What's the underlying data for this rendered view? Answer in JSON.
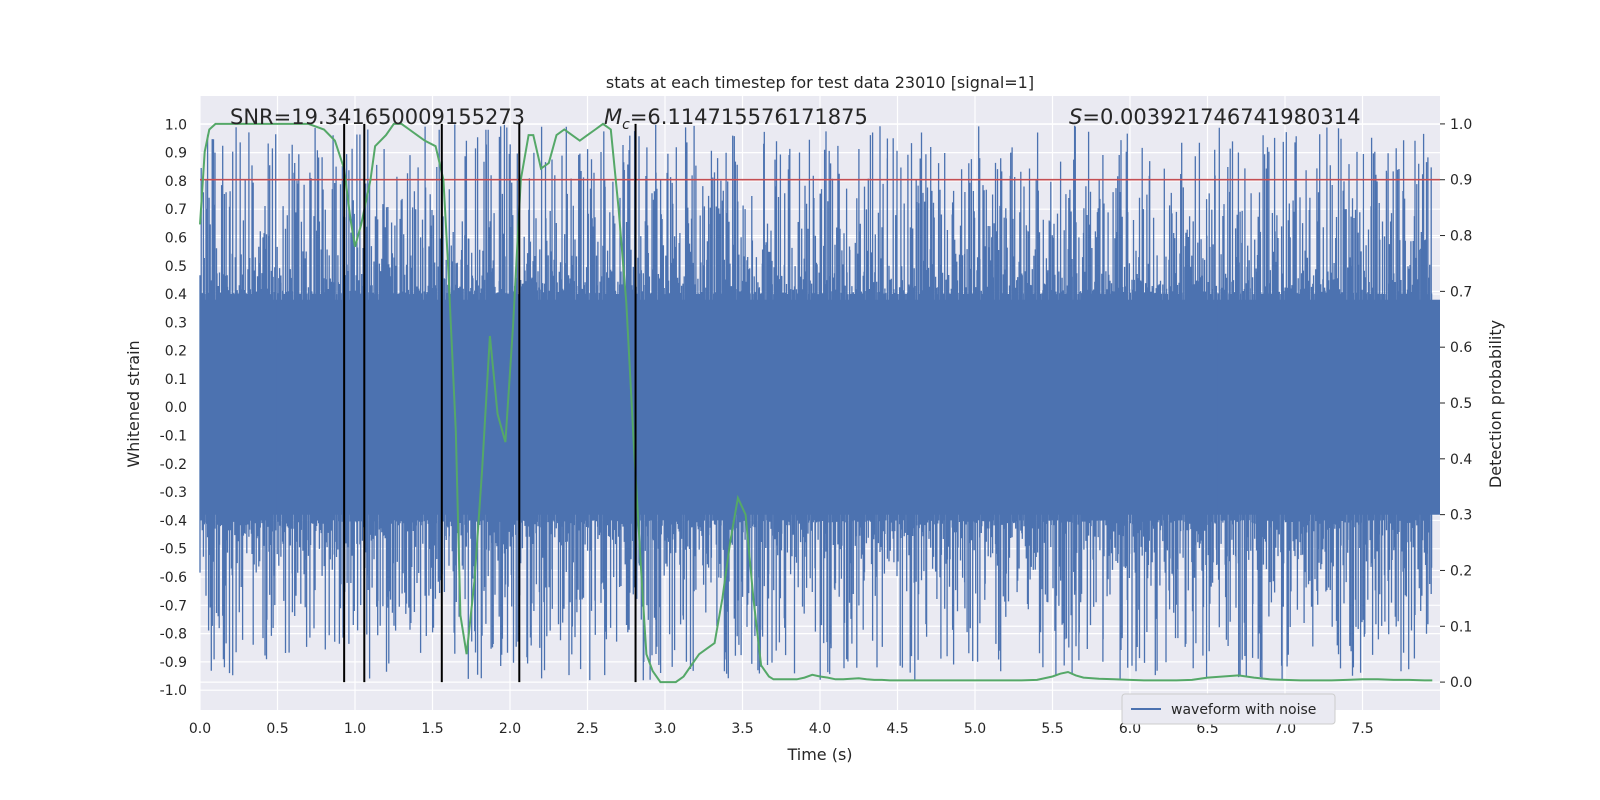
{
  "chart_data": {
    "type": "line",
    "title": "stats at each timestep for test data 23010 [signal=1]",
    "xlabel": "Time (s)",
    "ylabel_left": "Whitened strain",
    "ylabel_right": "Detection probability",
    "xlim": [
      0.0,
      8.0
    ],
    "ylim_left": [
      -1.07,
      1.1
    ],
    "ylim_right": [
      -0.05,
      1.05
    ],
    "x_ticks": [
      "0.0",
      "0.5",
      "1.0",
      "1.5",
      "2.0",
      "2.5",
      "3.0",
      "3.5",
      "4.0",
      "4.5",
      "5.0",
      "5.5",
      "6.0",
      "6.5",
      "7.0",
      "7.5"
    ],
    "y_left_ticks": [
      "1.0",
      "0.9",
      "0.8",
      "0.7",
      "0.6",
      "0.5",
      "0.4",
      "0.3",
      "0.2",
      "0.1",
      "0.0",
      "-0.1",
      "-0.2",
      "-0.3",
      "-0.4",
      "-0.5",
      "-0.6",
      "-0.7",
      "-0.8",
      "-0.9",
      "-1.0"
    ],
    "y_right_ticks": [
      "1.0",
      "0.9",
      "0.8",
      "0.7",
      "0.6",
      "0.5",
      "0.4",
      "0.3",
      "0.2",
      "0.1",
      "0.0"
    ],
    "grid": true,
    "legend_position": "lower-right",
    "annotations": {
      "snr": "SNR=19.341650009155273",
      "chirp_mass_symbol": "M",
      "chirp_mass_sub": "c",
      "chirp_mass_value": "=6.114715576171875",
      "s_symbol": "S",
      "s_value": "=0.003921746741980314"
    },
    "threshold": {
      "axis": "right",
      "value": 0.9,
      "color": "#c44e52"
    },
    "vertical_markers": [
      0.93,
      1.06,
      1.56,
      2.06,
      2.81
    ],
    "series": [
      {
        "name": "waveform with noise",
        "axis": "left",
        "color": "#4c72b0",
        "style": "dense-noise",
        "samples": 8192,
        "core_amplitude": 0.4,
        "spike_max": 1.0,
        "spike_min": -0.97
      },
      {
        "axis": "right",
        "color": "#55a868",
        "x": [
          0.0,
          0.03,
          0.06,
          0.1,
          0.15,
          0.2,
          0.3,
          0.4,
          0.5,
          0.6,
          0.7,
          0.8,
          0.87,
          0.93,
          0.97,
          1.0,
          1.04,
          1.1,
          1.13,
          1.2,
          1.25,
          1.3,
          1.35,
          1.4,
          1.45,
          1.52,
          1.57,
          1.6,
          1.65,
          1.68,
          1.72,
          1.77,
          1.82,
          1.87,
          1.92,
          1.97,
          2.02,
          2.07,
          2.12,
          2.15,
          2.2,
          2.25,
          2.3,
          2.35,
          2.4,
          2.45,
          2.5,
          2.55,
          2.6,
          2.65,
          2.7,
          2.75,
          2.8,
          2.85,
          2.88,
          2.92,
          2.97,
          3.02,
          3.07,
          3.12,
          3.17,
          3.22,
          3.27,
          3.32,
          3.37,
          3.42,
          3.47,
          3.52,
          3.57,
          3.62,
          3.67,
          3.7,
          3.75,
          3.8,
          3.85,
          3.9,
          3.95,
          4.0,
          4.05,
          4.1,
          4.15,
          4.2,
          4.25,
          4.3,
          4.35,
          4.4,
          4.45,
          4.5,
          4.6,
          4.7,
          4.8,
          4.9,
          5.0,
          5.1,
          5.2,
          5.3,
          5.4,
          5.5,
          5.55,
          5.6,
          5.65,
          5.7,
          5.8,
          5.9,
          6.0,
          6.1,
          6.2,
          6.3,
          6.4,
          6.5,
          6.6,
          6.7,
          6.8,
          6.9,
          7.0,
          7.1,
          7.2,
          7.3,
          7.4,
          7.5,
          7.6,
          7.7,
          7.8,
          7.9,
          7.95
        ],
        "y": [
          0.82,
          0.95,
          0.99,
          1.0,
          1.0,
          1.0,
          1.0,
          1.0,
          1.0,
          1.0,
          1.0,
          0.99,
          0.97,
          0.92,
          0.83,
          0.78,
          0.82,
          0.9,
          0.96,
          0.98,
          1.0,
          1.0,
          0.99,
          0.98,
          0.97,
          0.96,
          0.9,
          0.75,
          0.45,
          0.12,
          0.05,
          0.18,
          0.38,
          0.62,
          0.48,
          0.43,
          0.64,
          0.9,
          0.98,
          0.98,
          0.92,
          0.93,
          0.98,
          0.99,
          0.98,
          0.97,
          0.98,
          0.99,
          1.0,
          0.99,
          0.85,
          0.68,
          0.42,
          0.18,
          0.05,
          0.02,
          0.0,
          0.0,
          0.0,
          0.01,
          0.03,
          0.05,
          0.06,
          0.07,
          0.15,
          0.25,
          0.33,
          0.3,
          0.15,
          0.03,
          0.01,
          0.005,
          0.005,
          0.005,
          0.005,
          0.008,
          0.013,
          0.01,
          0.008,
          0.005,
          0.005,
          0.006,
          0.007,
          0.005,
          0.004,
          0.004,
          0.003,
          0.003,
          0.003,
          0.003,
          0.003,
          0.003,
          0.003,
          0.003,
          0.003,
          0.003,
          0.004,
          0.01,
          0.015,
          0.018,
          0.012,
          0.008,
          0.006,
          0.005,
          0.004,
          0.003,
          0.003,
          0.003,
          0.004,
          0.008,
          0.01,
          0.012,
          0.008,
          0.005,
          0.004,
          0.003,
          0.003,
          0.003,
          0.004,
          0.005,
          0.005,
          0.004,
          0.004,
          0.003,
          0.003
        ]
      }
    ]
  }
}
